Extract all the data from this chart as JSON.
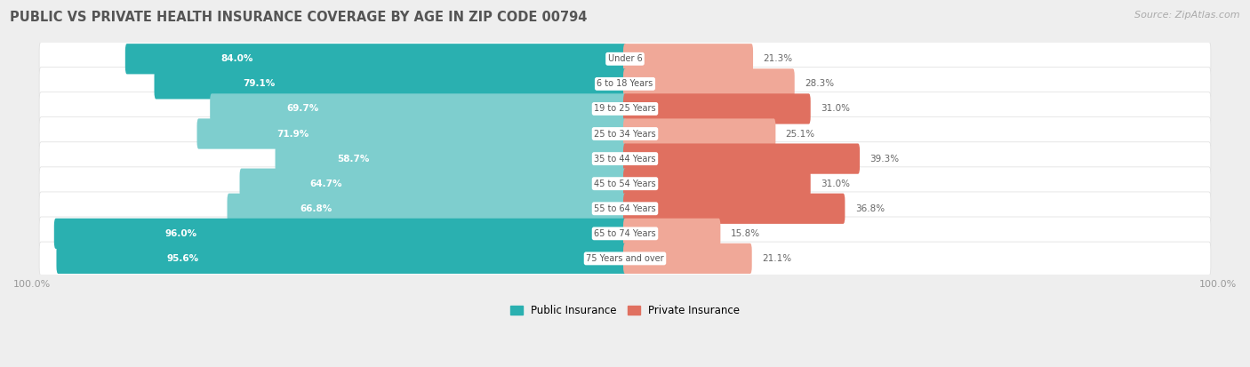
{
  "title": "PUBLIC VS PRIVATE HEALTH INSURANCE COVERAGE BY AGE IN ZIP CODE 00794",
  "source": "Source: ZipAtlas.com",
  "categories": [
    "Under 6",
    "6 to 18 Years",
    "19 to 25 Years",
    "25 to 34 Years",
    "35 to 44 Years",
    "45 to 54 Years",
    "55 to 64 Years",
    "65 to 74 Years",
    "75 Years and over"
  ],
  "public_values": [
    84.0,
    79.1,
    69.7,
    71.9,
    58.7,
    64.7,
    66.8,
    96.0,
    95.6
  ],
  "private_values": [
    21.3,
    28.3,
    31.0,
    25.1,
    39.3,
    31.0,
    36.8,
    15.8,
    21.1
  ],
  "public_color_dark": "#2ab0b0",
  "public_color_light": "#7ecece",
  "private_color_dark": "#e07060",
  "private_color_light": "#f0a898",
  "bg_color": "#eeeeee",
  "row_bg_color": "#f8f8f8",
  "row_border_color": "#dddddd",
  "title_color": "#555555",
  "label_white": "#ffffff",
  "category_color": "#555555",
  "value_outside_color": "#666666",
  "bar_height": 0.62,
  "max_value": 100.0,
  "figsize": [
    14.06,
    4.13
  ],
  "dpi": 100,
  "public_dark_threshold": 75.0,
  "private_dark_threshold": 30.0
}
